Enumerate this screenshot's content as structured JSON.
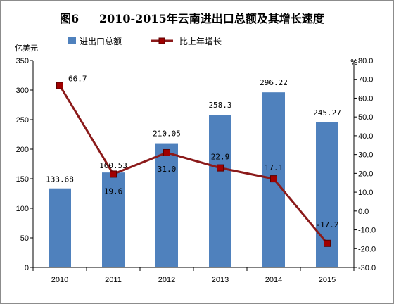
{
  "chart_data": {
    "type": "bar+line",
    "title_prefix": "图6",
    "title": "2010-2015年云南进出口总额及其增长速度",
    "categories": [
      "2010",
      "2011",
      "2012",
      "2013",
      "2014",
      "2015"
    ],
    "series": [
      {
        "name": "进出口总额",
        "type": "bar",
        "axis": "left",
        "values": [
          133.68,
          160.53,
          210.05,
          258.3,
          296.22,
          245.27
        ],
        "labels": [
          "133.68",
          "160.53",
          "210.05",
          "258.3",
          "296.22",
          "245.27"
        ],
        "color": "#4f81bd"
      },
      {
        "name": "比上年增长",
        "type": "line",
        "axis": "right",
        "values": [
          66.7,
          19.6,
          31.0,
          22.9,
          17.1,
          -17.2
        ],
        "labels": [
          "66.7",
          "19.6",
          "31.0",
          "22.9",
          "17.1",
          "-17.2"
        ],
        "color": "#8b1a1a",
        "marker_color": "#a00000"
      }
    ],
    "ylabel_left": "亿美元",
    "ylabel_right": "%",
    "ylim_left": [
      0,
      350
    ],
    "ylim_right": [
      -30,
      80
    ],
    "yticks_left": [
      "0",
      "50",
      "100",
      "150",
      "200",
      "250",
      "300",
      "350"
    ],
    "yticks_right": [
      "-30.0",
      "-20.0",
      "-10.0",
      "0.0",
      "10.0",
      "20.0",
      "30.0",
      "40.0",
      "50.0",
      "60.0",
      "70.0",
      "80.0"
    ],
    "legend_position": "top-left",
    "grid": false
  }
}
